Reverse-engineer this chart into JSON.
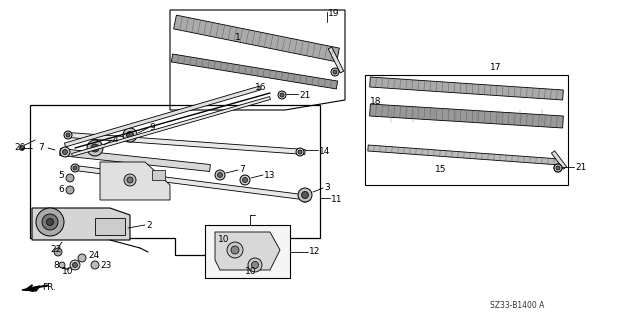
{
  "bg_color": "#ffffff",
  "line_color": "#000000",
  "diagram_code": "SZ33-B1400 A"
}
